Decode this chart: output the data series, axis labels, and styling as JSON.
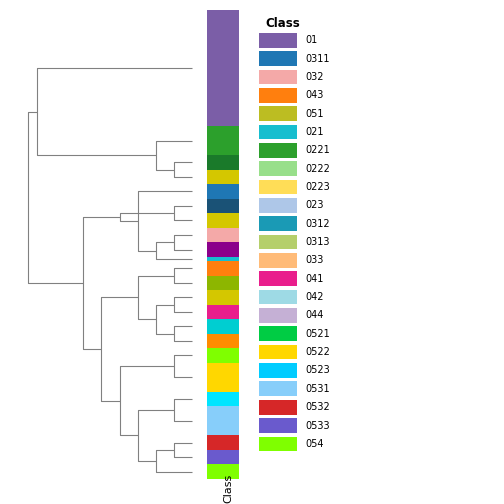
{
  "figsize": [
    5.04,
    5.04
  ],
  "dpi": 100,
  "classes": [
    "01",
    "0311",
    "032",
    "043",
    "051",
    "021",
    "0221",
    "0222",
    "0223",
    "023",
    "0312",
    "0313",
    "033",
    "041",
    "042",
    "044",
    "0521",
    "0522",
    "0523",
    "0531",
    "0532",
    "0533",
    "054"
  ],
  "legend_colors": [
    "#7b5ea7",
    "#1f77b4",
    "#f7b6b6",
    "#ff7f0e",
    "#bcbd22",
    "#17becf",
    "#2ca02c",
    "#98df8a",
    "#ffdd57",
    "#aec7e8",
    "#00aacc",
    "#b5cf6b",
    "#ffbb78",
    "#e377c2",
    "#9edae5",
    "#c5b0d5",
    "#00cc44",
    "#ffd700",
    "#00ccff",
    "#87cefa",
    "#d62728",
    "#6a5acd",
    "#7fff00"
  ],
  "leaf_order_top_to_bottom": [
    0,
    1,
    2,
    3,
    4,
    5,
    6,
    7,
    8,
    9,
    10,
    11,
    12,
    13,
    14,
    15,
    16,
    17,
    18,
    19,
    20,
    21,
    22
  ],
  "bar_heights": [
    8,
    2,
    1,
    1,
    2,
    1,
    1,
    1,
    1,
    1,
    1,
    1,
    1,
    1,
    1,
    1,
    1,
    2,
    1,
    2,
    1,
    1,
    1
  ],
  "xlabel": "Class"
}
